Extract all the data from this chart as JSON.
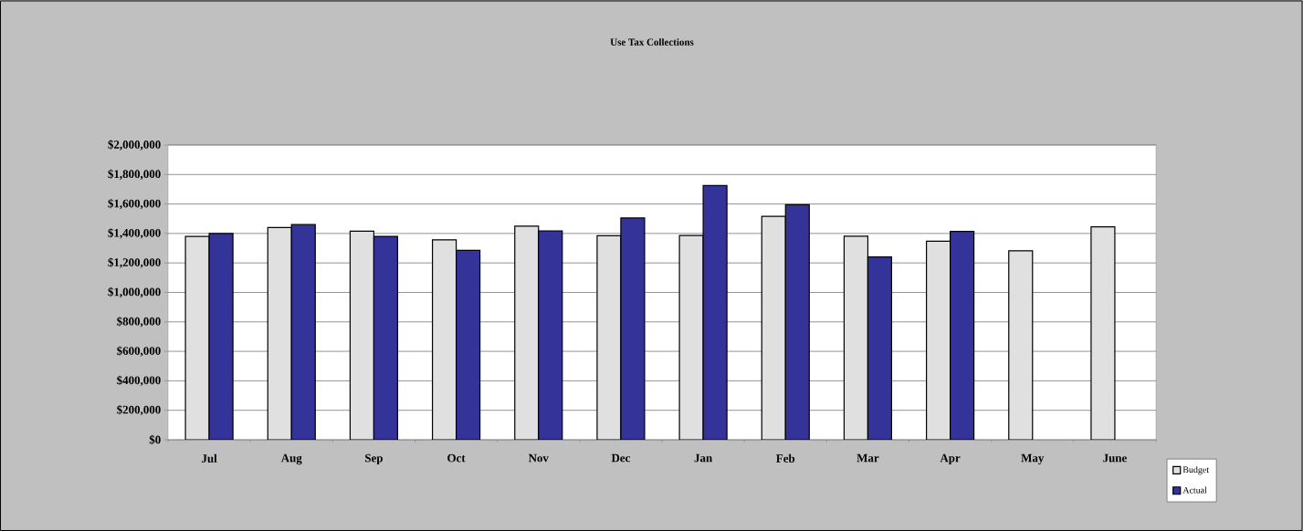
{
  "chart_data": {
    "type": "bar",
    "title": "Use Tax Collections",
    "categories": [
      "Jul",
      "Aug",
      "Sep",
      "Oct",
      "Nov",
      "Dec",
      "Jan",
      "Feb",
      "Mar",
      "Apr",
      "May",
      "June"
    ],
    "series": [
      {
        "name": "Budget",
        "color": "#e0e0e0",
        "values": [
          1380000,
          1440000,
          1415000,
          1357000,
          1450000,
          1385000,
          1386000,
          1516000,
          1382000,
          1348000,
          1282000,
          1445000
        ]
      },
      {
        "name": "Actual",
        "color": "#333399",
        "values": [
          1400000,
          1460000,
          1380000,
          1285000,
          1417000,
          1505000,
          1725000,
          1595000,
          1240000,
          1414000,
          null,
          null
        ]
      }
    ],
    "ylim": [
      0,
      2000000
    ],
    "yticks": [
      {
        "value": 0,
        "label": "$0"
      },
      {
        "value": 200000,
        "label": "$200,000"
      },
      {
        "value": 400000,
        "label": "$400,000"
      },
      {
        "value": 600000,
        "label": "$600,000"
      },
      {
        "value": 800000,
        "label": "$800,000"
      },
      {
        "value": 1000000,
        "label": "$1,000,000"
      },
      {
        "value": 1200000,
        "label": "$1,200,000"
      },
      {
        "value": 1400000,
        "label": "$1,400,000"
      },
      {
        "value": 1600000,
        "label": "$1,600,000"
      },
      {
        "value": 1800000,
        "label": "$1,800,000"
      },
      {
        "value": 2000000,
        "label": "$2,000,000"
      }
    ],
    "grid": "y",
    "legend": "bottom right"
  }
}
